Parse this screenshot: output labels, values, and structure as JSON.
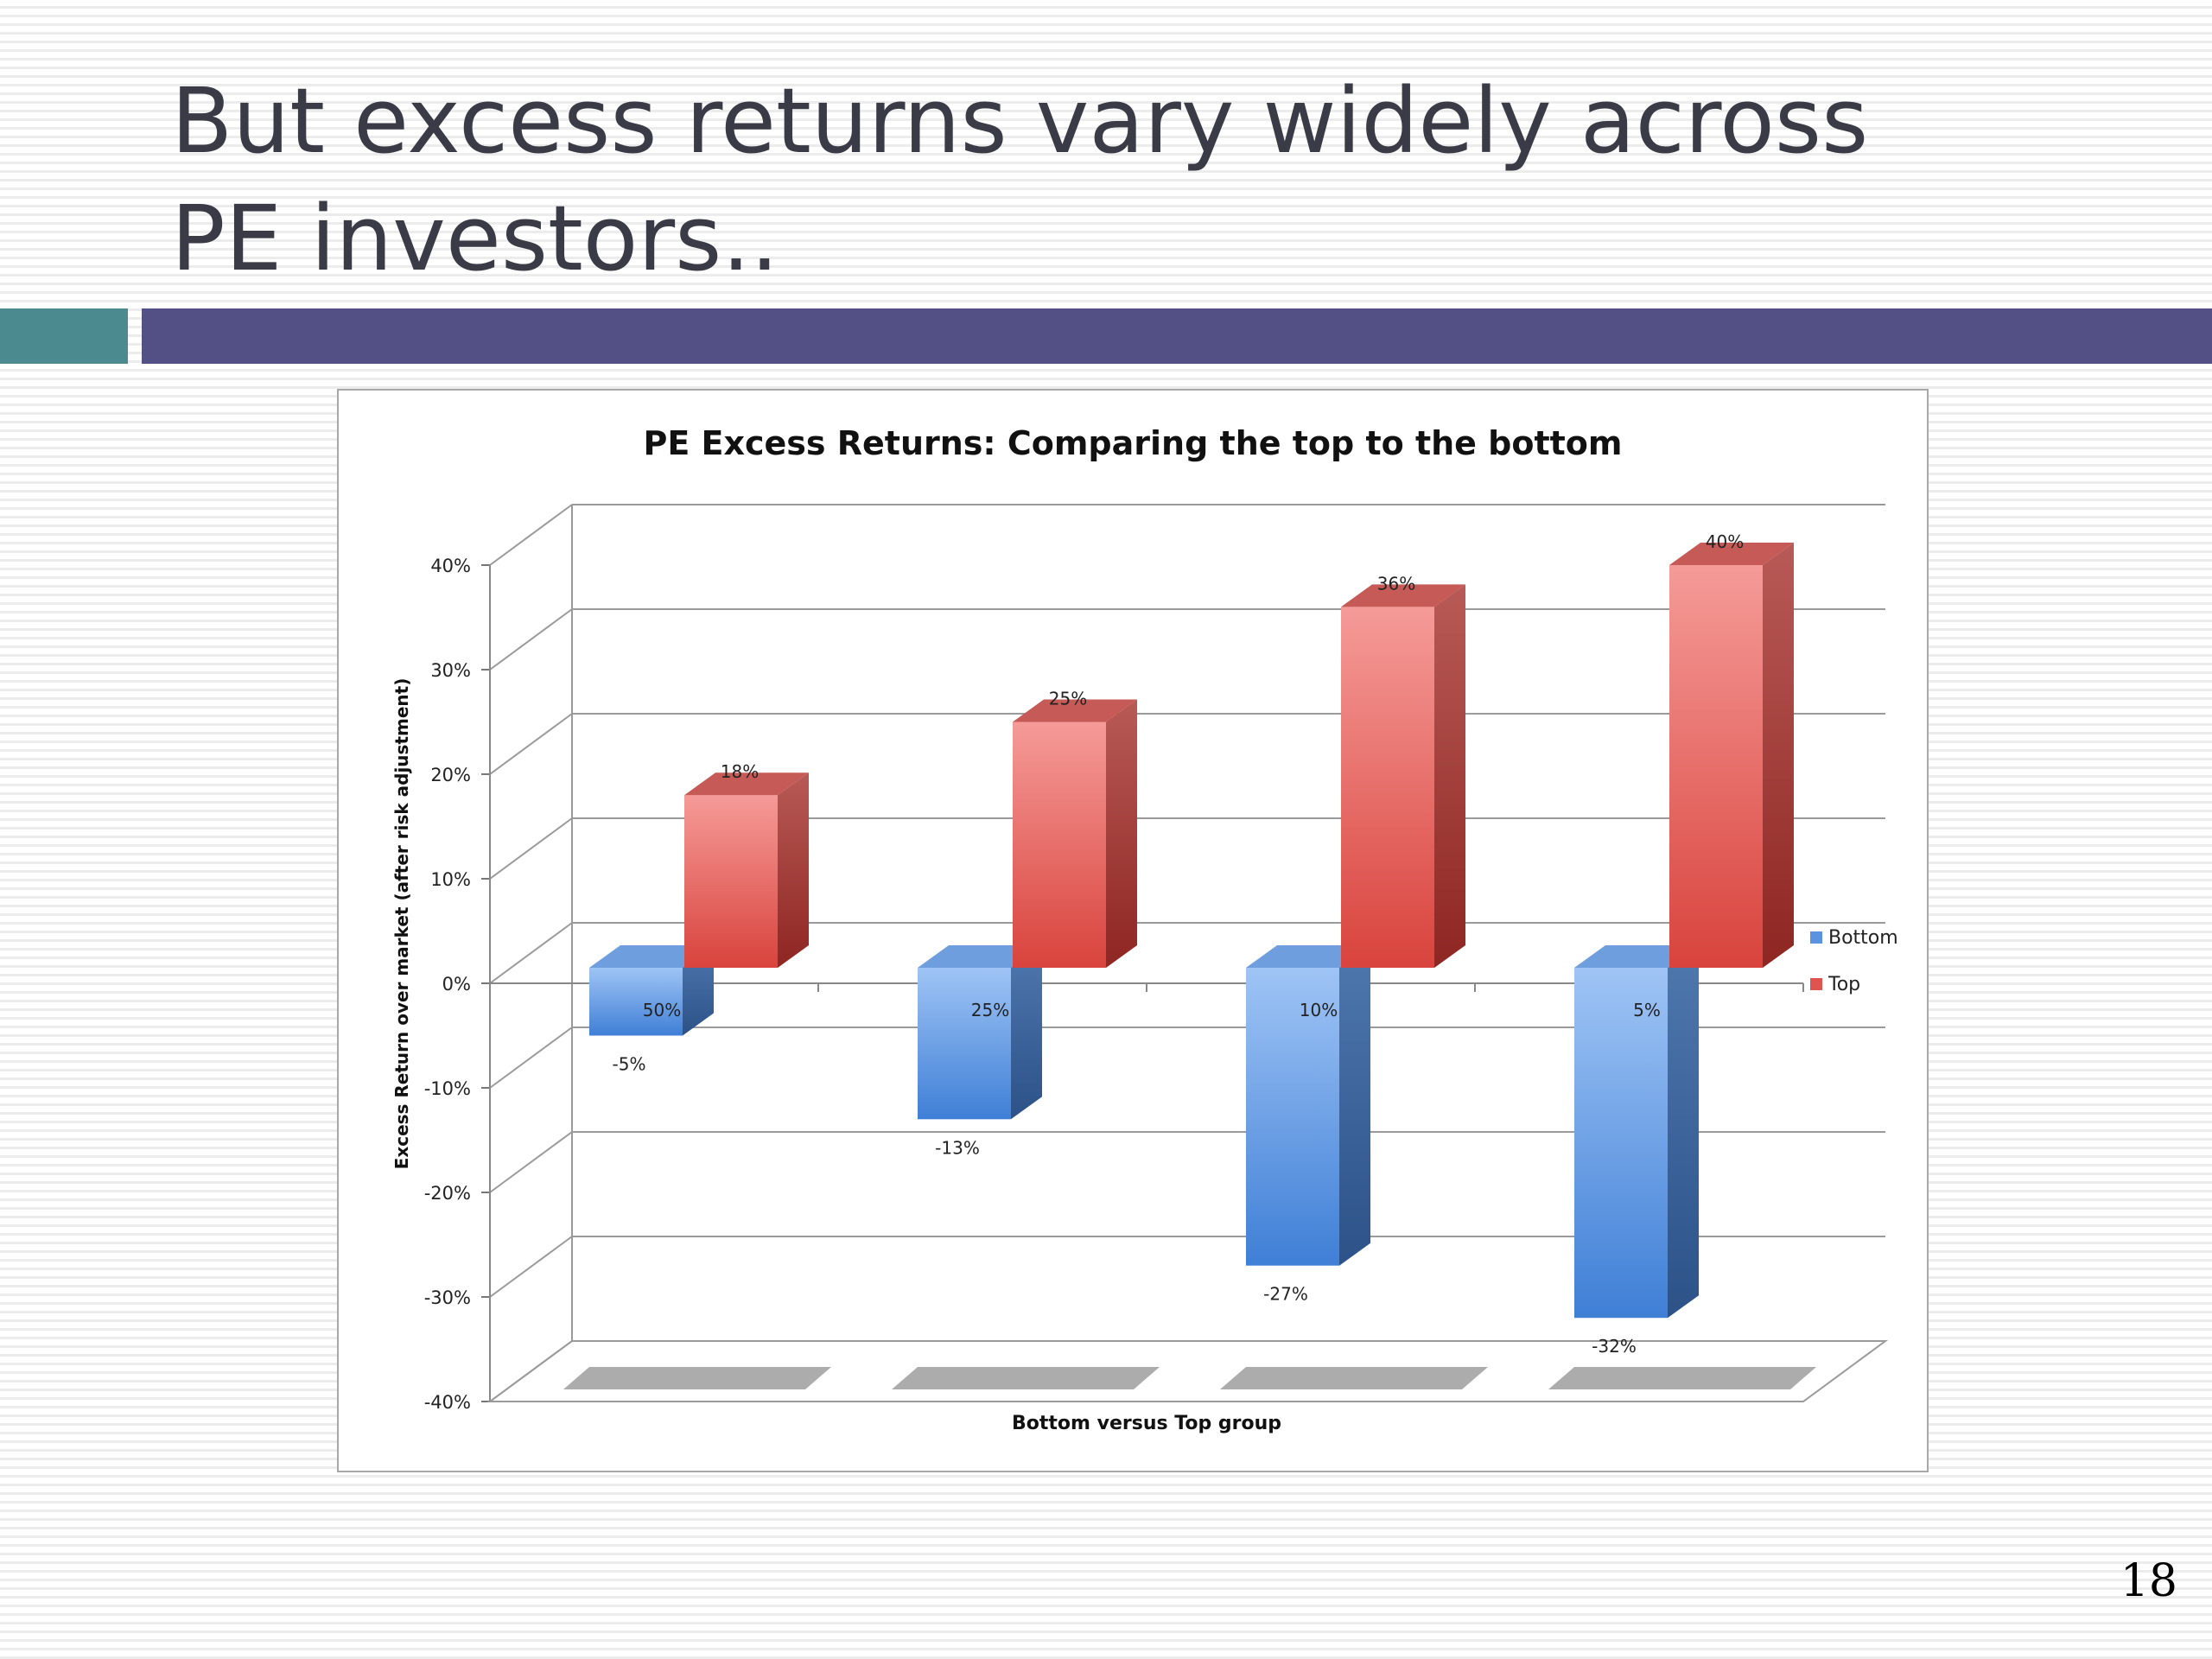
{
  "slide": {
    "title": "But excess returns vary widely across PE investors..",
    "page_number": "18"
  },
  "colors": {
    "title_text": "#3b3b48",
    "accent_teal": "#4b8a8e",
    "accent_navy": "#525084",
    "bottom_series": "#5b93e0",
    "top_series": "#e0544f"
  },
  "chart_data": {
    "type": "bar",
    "title": "PE Excess Returns: Comparing the top to the bottom",
    "xlabel": "Bottom versus Top group",
    "ylabel": "Excess Return over market (after risk adjustment)",
    "categories": [
      "50%",
      "25%",
      "10%",
      "5%"
    ],
    "series": [
      {
        "name": "Bottom",
        "values": [
          -5,
          -13,
          -27,
          -32
        ],
        "labels": [
          "-5%",
          "-13%",
          "-27%",
          "-32%"
        ]
      },
      {
        "name": "Top",
        "values": [
          18,
          25,
          36,
          40
        ],
        "labels": [
          "18%",
          "25%",
          "36%",
          "40%"
        ]
      }
    ],
    "ylim": [
      -40,
      40
    ],
    "yticks": [
      "-40%",
      "-30%",
      "-20%",
      "-10%",
      "0%",
      "10%",
      "20%",
      "30%",
      "40%"
    ],
    "grid": true,
    "legend": "right",
    "style": "3d"
  }
}
